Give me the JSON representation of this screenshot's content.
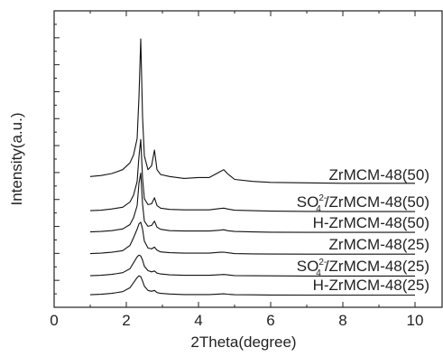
{
  "chart_data": {
    "type": "line",
    "xlabel": "2Theta(degree)",
    "ylabel": "Intensity(a.u.)",
    "xlim": [
      0,
      10.75
    ],
    "x_ticks": [
      0,
      2,
      4,
      6,
      8,
      10
    ],
    "y_ticks": "unlabeled",
    "grid": false,
    "legend": "labels placed beside each curve",
    "series": [
      {
        "name": "ZrMCM-48(50)",
        "label_main": "ZrMCM-48(50)",
        "label_sup": "",
        "label_sub": "",
        "label_rest": "",
        "x": [
          1.0,
          1.3,
          1.6,
          1.9,
          2.1,
          2.2,
          2.3,
          2.35,
          2.4,
          2.45,
          2.5,
          2.6,
          2.7,
          2.78,
          2.85,
          2.95,
          3.2,
          3.6,
          4.0,
          4.3,
          4.6,
          4.7,
          4.8,
          5.0,
          5.5,
          6.0,
          7.0,
          8.0,
          9.0,
          10.0
        ],
        "y": [
          0.9,
          1.0,
          1.2,
          1.6,
          2.3,
          3.1,
          4.8,
          9.0,
          15.0,
          7.0,
          3.0,
          1.6,
          2.0,
          3.6,
          1.6,
          1.1,
          0.9,
          0.7,
          0.8,
          0.8,
          1.4,
          1.6,
          1.2,
          0.6,
          0.4,
          0.3,
          0.25,
          0.2,
          0.2,
          0.2
        ]
      },
      {
        "name": "SO42-/ZrMCM-48(50)",
        "label_main": "SO",
        "label_sup": "2-",
        "label_sub": "4",
        "label_rest": "/ZrMCM-48(50)",
        "x": [
          1.0,
          1.3,
          1.6,
          1.9,
          2.1,
          2.2,
          2.3,
          2.35,
          2.4,
          2.45,
          2.5,
          2.6,
          2.7,
          2.78,
          2.85,
          2.95,
          3.2,
          3.6,
          4.0,
          4.3,
          4.6,
          4.7,
          4.8,
          5.0,
          5.5,
          6.0,
          7.0,
          8.0,
          9.0,
          10.0
        ],
        "y": [
          0.2,
          0.25,
          0.4,
          0.6,
          1.2,
          2.0,
          3.6,
          6.5,
          8.5,
          4.0,
          1.6,
          0.9,
          1.0,
          1.7,
          0.8,
          0.5,
          0.35,
          0.3,
          0.3,
          0.3,
          0.45,
          0.5,
          0.4,
          0.25,
          0.2,
          0.15,
          0.12,
          0.1,
          0.1,
          0.1
        ]
      },
      {
        "name": "H-ZrMCM-48(50)",
        "label_main": "H-ZrMCM-48(50)",
        "label_sup": "",
        "label_sub": "",
        "label_rest": "",
        "x": [
          1.0,
          1.3,
          1.6,
          1.9,
          2.1,
          2.2,
          2.3,
          2.35,
          2.4,
          2.45,
          2.5,
          2.6,
          2.7,
          2.78,
          2.85,
          2.95,
          3.2,
          3.6,
          4.0,
          4.3,
          4.6,
          4.7,
          4.8,
          5.0,
          5.5,
          6.0,
          7.0,
          8.0,
          9.0,
          10.0
        ],
        "y": [
          0.15,
          0.2,
          0.3,
          0.5,
          1.0,
          1.8,
          3.2,
          5.8,
          7.0,
          3.4,
          1.4,
          0.8,
          0.9,
          1.4,
          0.7,
          0.45,
          0.3,
          0.25,
          0.25,
          0.25,
          0.35,
          0.4,
          0.3,
          0.2,
          0.15,
          0.12,
          0.1,
          0.1,
          0.1,
          0.1
        ]
      },
      {
        "name": "ZrMCM-48(25)",
        "label_main": "ZrMCM-48(25)",
        "label_sup": "",
        "label_sub": "",
        "label_rest": "",
        "x": [
          1.0,
          1.3,
          1.6,
          1.9,
          2.1,
          2.2,
          2.3,
          2.35,
          2.4,
          2.45,
          2.5,
          2.6,
          2.7,
          2.78,
          2.85,
          2.95,
          3.2,
          3.6,
          4.0,
          4.3,
          4.6,
          4.7,
          4.8,
          5.0,
          5.5,
          6.0,
          7.0,
          8.0,
          9.0,
          10.0
        ],
        "y": [
          0.15,
          0.2,
          0.3,
          0.5,
          1.1,
          2.0,
          3.0,
          3.6,
          3.8,
          3.0,
          1.6,
          0.8,
          0.7,
          0.9,
          0.55,
          0.35,
          0.25,
          0.2,
          0.2,
          0.2,
          0.3,
          0.32,
          0.25,
          0.15,
          0.12,
          0.1,
          0.08,
          0.08,
          0.08,
          0.08
        ]
      },
      {
        "name": "SO42-/ZrMCM-48(25)",
        "label_main": "SO",
        "label_sup": "2-",
        "label_sub": "4",
        "label_rest": "/ZrMCM-48(25)",
        "x": [
          1.0,
          1.3,
          1.6,
          1.9,
          2.1,
          2.2,
          2.3,
          2.35,
          2.4,
          2.45,
          2.5,
          2.6,
          2.7,
          2.78,
          2.85,
          2.95,
          3.2,
          3.6,
          4.0,
          4.3,
          4.6,
          4.7,
          4.8,
          5.0,
          5.5,
          6.0,
          7.0,
          8.0,
          9.0,
          10.0
        ],
        "y": [
          0.1,
          0.15,
          0.25,
          0.45,
          0.9,
          1.6,
          2.3,
          2.5,
          2.4,
          1.9,
          1.2,
          0.7,
          0.55,
          0.65,
          0.4,
          0.3,
          0.2,
          0.15,
          0.15,
          0.15,
          0.22,
          0.24,
          0.2,
          0.12,
          0.1,
          0.08,
          0.06,
          0.06,
          0.06,
          0.06
        ]
      },
      {
        "name": "H-ZrMCM-48(25)",
        "label_main": "H-ZrMCM-48(25)",
        "label_sup": "",
        "label_sub": "",
        "label_rest": "",
        "x": [
          1.0,
          1.3,
          1.6,
          1.9,
          2.1,
          2.2,
          2.3,
          2.35,
          2.4,
          2.45,
          2.5,
          2.6,
          2.7,
          2.78,
          2.85,
          2.95,
          3.2,
          3.6,
          4.0,
          4.3,
          4.6,
          4.7,
          4.8,
          5.0,
          5.5,
          6.0,
          7.0,
          8.0,
          9.0,
          10.0
        ],
        "y": [
          0.1,
          0.15,
          0.25,
          0.45,
          0.9,
          1.5,
          2.1,
          2.3,
          2.2,
          1.7,
          1.1,
          0.6,
          0.5,
          0.6,
          0.35,
          0.25,
          0.18,
          0.12,
          0.12,
          0.12,
          0.18,
          0.2,
          0.16,
          0.1,
          0.08,
          0.06,
          0.05,
          0.05,
          0.05,
          0.05
        ]
      }
    ]
  }
}
